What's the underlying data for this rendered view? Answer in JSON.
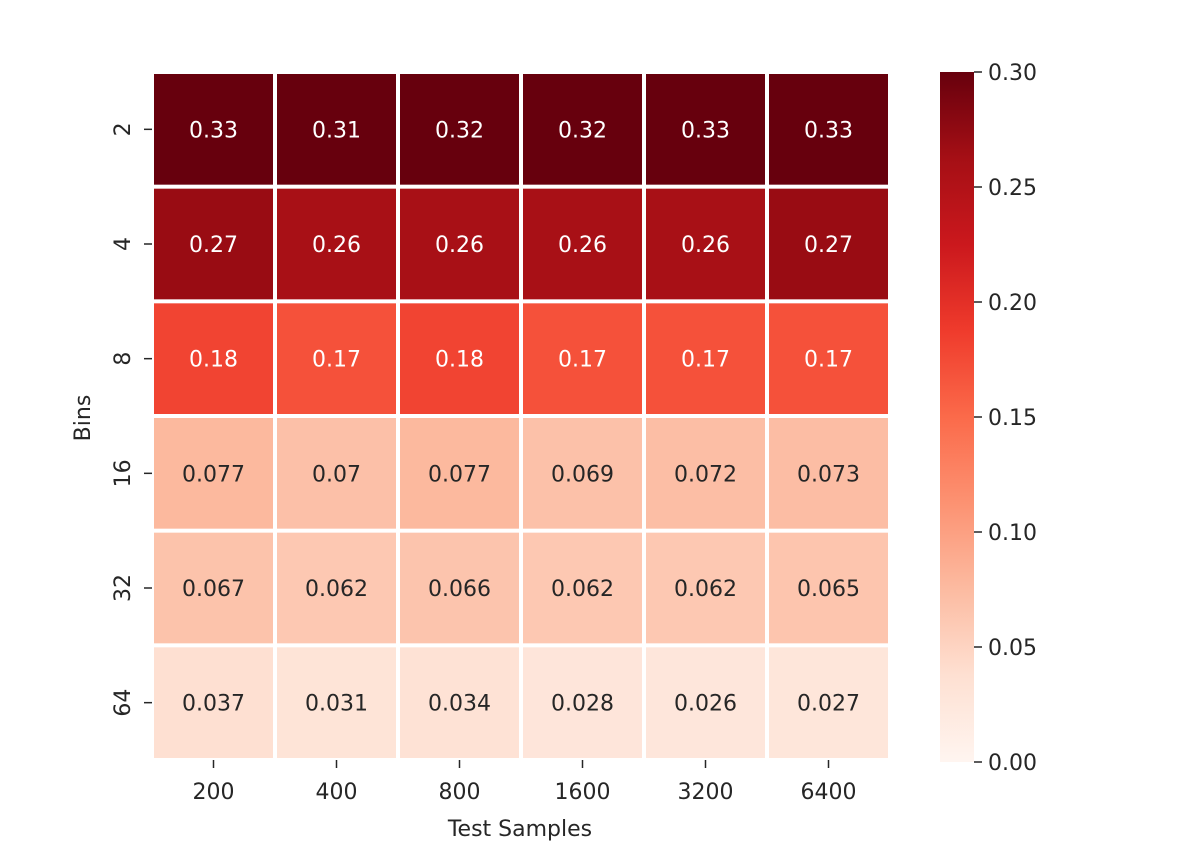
{
  "chart_data": {
    "type": "heatmap",
    "title": "",
    "xlabel": "Test Samples",
    "ylabel": "Bins",
    "x_categories": [
      "200",
      "400",
      "800",
      "1600",
      "3200",
      "6400"
    ],
    "y_categories": [
      "2",
      "4",
      "8",
      "16",
      "32",
      "64"
    ],
    "values": [
      [
        0.33,
        0.31,
        0.32,
        0.32,
        0.33,
        0.33
      ],
      [
        0.27,
        0.26,
        0.26,
        0.26,
        0.26,
        0.27
      ],
      [
        0.18,
        0.17,
        0.18,
        0.17,
        0.17,
        0.17
      ],
      [
        0.077,
        0.07,
        0.077,
        0.069,
        0.072,
        0.073
      ],
      [
        0.067,
        0.062,
        0.066,
        0.062,
        0.062,
        0.065
      ],
      [
        0.037,
        0.031,
        0.034,
        0.028,
        0.026,
        0.027
      ]
    ],
    "value_labels": [
      [
        "0.33",
        "0.31",
        "0.32",
        "0.32",
        "0.33",
        "0.33"
      ],
      [
        "0.27",
        "0.26",
        "0.26",
        "0.26",
        "0.26",
        "0.27"
      ],
      [
        "0.18",
        "0.17",
        "0.18",
        "0.17",
        "0.17",
        "0.17"
      ],
      [
        "0.077",
        "0.07",
        "0.077",
        "0.069",
        "0.072",
        "0.073"
      ],
      [
        "0.067",
        "0.062",
        "0.066",
        "0.062",
        "0.062",
        "0.065"
      ],
      [
        "0.037",
        "0.031",
        "0.034",
        "0.028",
        "0.026",
        "0.027"
      ]
    ],
    "colormap": "Reds",
    "color_range": [
      0.0,
      0.3
    ],
    "colorbar": {
      "ticks": [
        0.0,
        0.05,
        0.1,
        0.15,
        0.2,
        0.25,
        0.3
      ],
      "tick_labels": [
        "0.00",
        "0.05",
        "0.10",
        "0.15",
        "0.20",
        "0.25",
        "0.30"
      ],
      "placement": "right"
    },
    "cell_separator_color": "#ffffff",
    "label_color_dark": "#262626",
    "label_color_light": "#ffffff"
  }
}
